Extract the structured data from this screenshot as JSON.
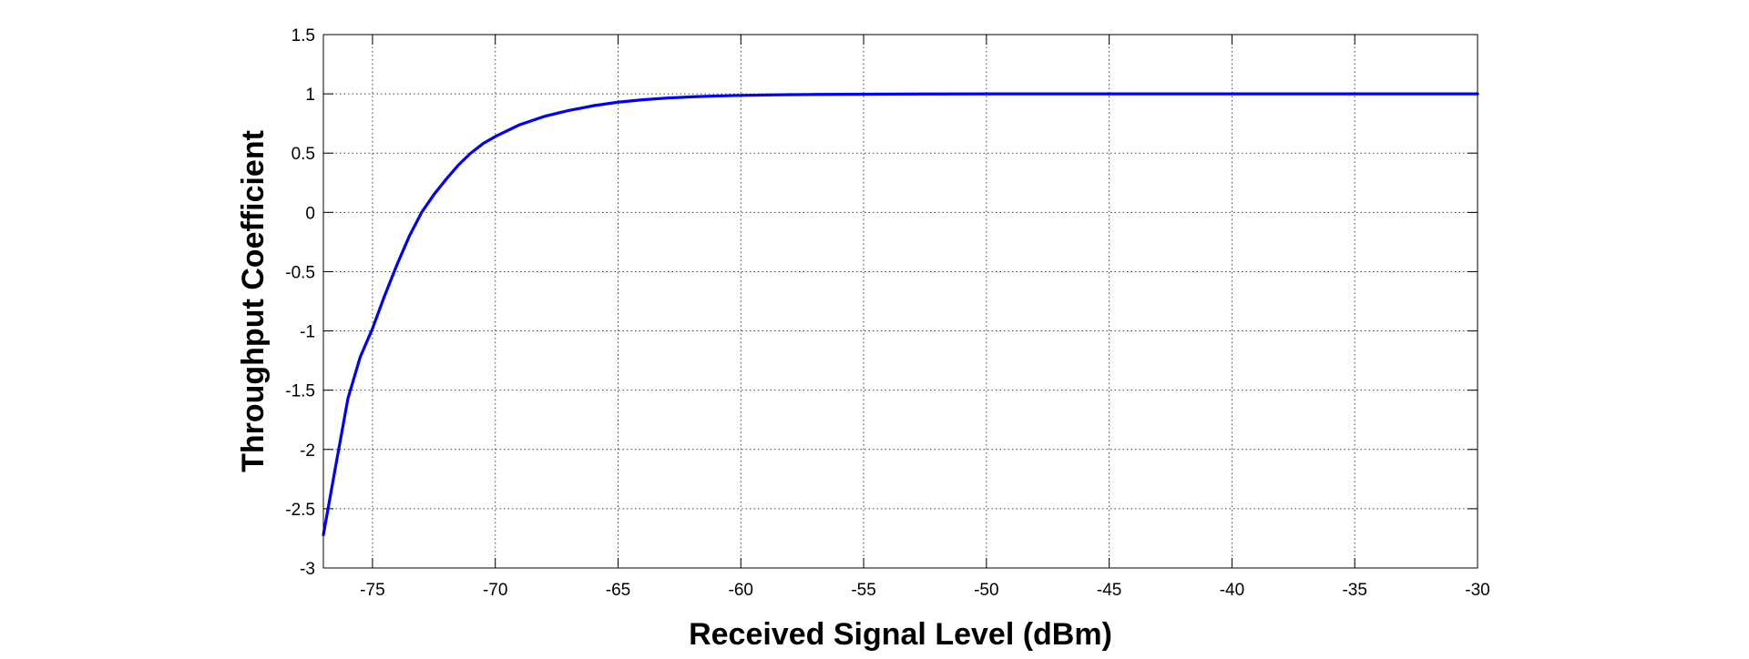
{
  "chart_data": {
    "type": "line",
    "xlabel": "Received Signal Level (dBm)",
    "ylabel": "Throughput Coefficient",
    "xlim": [
      -77,
      -30
    ],
    "ylim": [
      -3,
      1.5
    ],
    "x_ticks": [
      -75,
      -70,
      -65,
      -60,
      -55,
      -50,
      -45,
      -40,
      -35,
      -30
    ],
    "y_ticks": [
      -3,
      -2.5,
      -2,
      -1.5,
      -1,
      -0.5,
      0,
      0.5,
      1,
      1.5
    ],
    "x_tick_labels": [
      "-75",
      "-70",
      "-65",
      "-60",
      "-55",
      "-50",
      "-45",
      "-40",
      "-35",
      "-30"
    ],
    "y_tick_labels": [
      "-3",
      "-2.5",
      "-2",
      "-1.5",
      "-1",
      "-0.5",
      "0",
      "0.5",
      "1",
      "1.5"
    ],
    "grid": true,
    "legend": "none",
    "line_color": "#0000ff",
    "series": [
      {
        "x": [
          -77,
          -76.5,
          -76,
          -75.5,
          -75,
          -74.5,
          -74,
          -73.5,
          -73,
          -72.5,
          -72,
          -71.5,
          -71,
          -70.5,
          -70,
          -69,
          -68,
          -67,
          -66,
          -65,
          -64,
          -63,
          -62,
          -61,
          -60,
          -59,
          -58,
          -57,
          -56,
          -55,
          -54,
          -52,
          -50,
          -48,
          -46,
          -44,
          -42,
          -40,
          -38,
          -36,
          -34,
          -32,
          -30
        ],
        "y": [
          -2.72,
          -2.14,
          -1.57,
          -1.22,
          -0.98,
          -0.7,
          -0.44,
          -0.2,
          0.0,
          0.15,
          0.28,
          0.4,
          0.5,
          0.58,
          0.64,
          0.74,
          0.81,
          0.86,
          0.9,
          0.93,
          0.95,
          0.965,
          0.975,
          0.982,
          0.987,
          0.99,
          0.993,
          0.995,
          0.996,
          0.997,
          0.998,
          0.999,
          1.0,
          1.0,
          1.0,
          1.0,
          1.0,
          1.0,
          1.0,
          1.0,
          1.0,
          1.0,
          1.0
        ]
      }
    ]
  }
}
